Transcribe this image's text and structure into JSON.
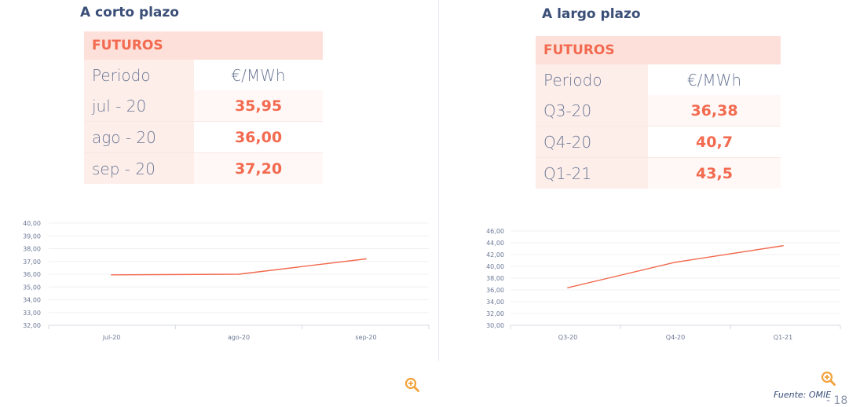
{
  "left": {
    "title": "A corto plazo",
    "table": {
      "header": "FUTUROS",
      "col_period": "Periodo",
      "col_unit": "€/MWh",
      "rows": [
        {
          "period": "jul - 20",
          "value": "35,95"
        },
        {
          "period": "ago - 20",
          "value": "36,00"
        },
        {
          "period": "sep - 20",
          "value": "37,20"
        }
      ]
    }
  },
  "right": {
    "title": "A largo plazo",
    "table": {
      "header": "FUTUROS",
      "col_period": "Periodo",
      "col_unit": "€/MWh",
      "rows": [
        {
          "period": "Q3-20",
          "value": "36,38"
        },
        {
          "period": "Q4-20",
          "value": "40,7"
        },
        {
          "period": "Q1-21",
          "value": "43,5"
        }
      ]
    }
  },
  "chart_data": [
    {
      "type": "line",
      "categories": [
        "jul-20",
        "ago-20",
        "sep-20"
      ],
      "series": [
        {
          "values": [
            35.95,
            36.0,
            37.2
          ]
        }
      ],
      "ylim": [
        32,
        40
      ],
      "ystep": 1,
      "yticks": [
        "32,00",
        "33,00",
        "34,00",
        "35,00",
        "36,00",
        "37,00",
        "38,00",
        "39,00",
        "40,00"
      ],
      "grid": true,
      "color": "#f26a4f"
    },
    {
      "type": "line",
      "categories": [
        "Q3-20",
        "Q4-20",
        "Q1-21"
      ],
      "series": [
        {
          "values": [
            36.38,
            40.7,
            43.5
          ]
        }
      ],
      "ylim": [
        30,
        46
      ],
      "ystep": 2,
      "yticks": [
        "30,00",
        "32,00",
        "34,00",
        "36,00",
        "38,00",
        "40,00",
        "42,00",
        "44,00",
        "46,00"
      ],
      "grid": true,
      "color": "#f26a4f"
    }
  ],
  "footer": {
    "source": "Fuente: OMIE",
    "page": "- 18"
  },
  "icons": {
    "zoom": "zoom-in-icon",
    "accent": "#f2a23a"
  }
}
